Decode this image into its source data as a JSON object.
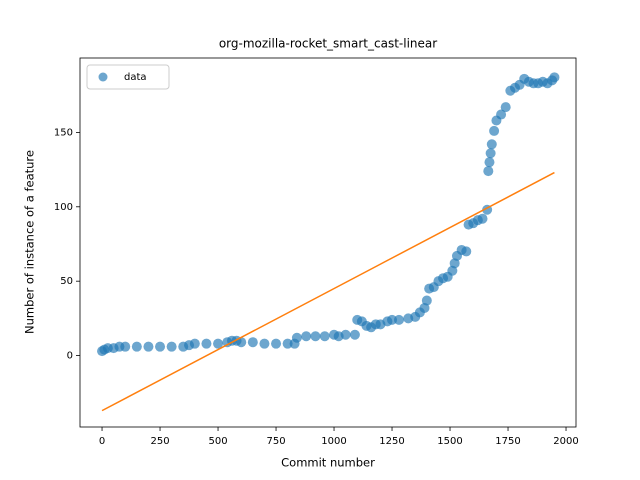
{
  "chart_data": {
    "type": "scatter",
    "title": "org-mozilla-rocket_smart_cast-linear",
    "xlabel": "Commit number",
    "ylabel": "Number of instance of a feature",
    "xlim": [
      -95,
      2043
    ],
    "ylim": [
      -48,
      200
    ],
    "xticks": [
      0,
      250,
      500,
      750,
      1000,
      1250,
      1500,
      1750,
      2000
    ],
    "yticks": [
      0,
      50,
      100,
      150
    ],
    "legend": "upper left",
    "series": [
      {
        "name": "data",
        "color": "#1f77b4",
        "x": [
          0,
          10,
          25,
          50,
          75,
          100,
          150,
          200,
          250,
          300,
          350,
          375,
          400,
          450,
          500,
          540,
          560,
          580,
          600,
          650,
          700,
          750,
          800,
          830,
          840,
          880,
          920,
          960,
          1000,
          1020,
          1050,
          1090,
          1100,
          1120,
          1140,
          1160,
          1180,
          1200,
          1230,
          1250,
          1280,
          1320,
          1350,
          1370,
          1390,
          1400,
          1410,
          1430,
          1450,
          1470,
          1490,
          1510,
          1520,
          1530,
          1550,
          1570,
          1580,
          1600,
          1620,
          1640,
          1660,
          1665,
          1670,
          1675,
          1680,
          1690,
          1700,
          1720,
          1740,
          1760,
          1780,
          1800,
          1820,
          1840,
          1860,
          1880,
          1900,
          1920,
          1940,
          1950
        ],
        "values": [
          3,
          4,
          5,
          5,
          6,
          6,
          6,
          6,
          6,
          6,
          6,
          7,
          8,
          8,
          8,
          9,
          10,
          10,
          9,
          9,
          8,
          8,
          8,
          8,
          12,
          13,
          13,
          13,
          14,
          13,
          14,
          14,
          24,
          23,
          20,
          19,
          21,
          21,
          23,
          24,
          24,
          25,
          26,
          29,
          32,
          37,
          45,
          46,
          50,
          52,
          53,
          57,
          62,
          67,
          71,
          70,
          88,
          89,
          91,
          92,
          98,
          124,
          130,
          136,
          142,
          151,
          158,
          162,
          167,
          178,
          180,
          182,
          186,
          184,
          183,
          183,
          184,
          183,
          185,
          187
        ]
      }
    ],
    "fit_line": {
      "color": "#ff7f0e",
      "x": [
        0,
        1950
      ],
      "values": [
        -37,
        123
      ]
    }
  }
}
